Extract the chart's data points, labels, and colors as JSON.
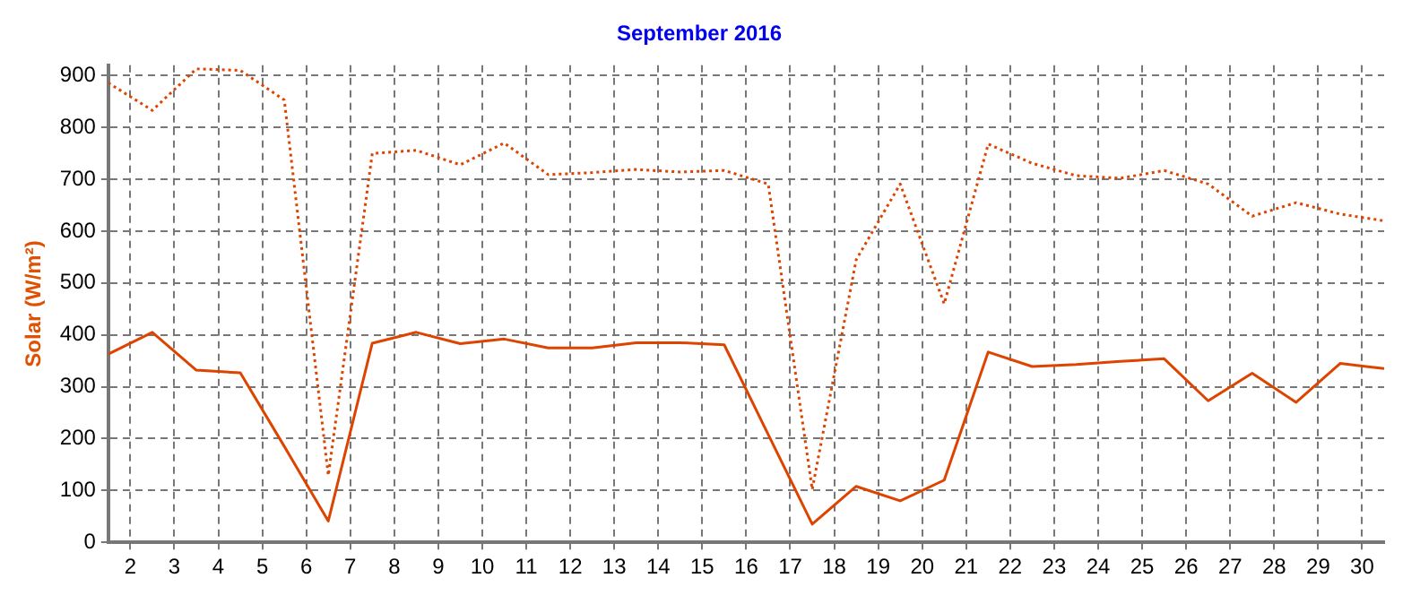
{
  "chart_data": {
    "type": "line",
    "title": "September 2016",
    "ylabel": "Solar (W/m²)",
    "x": [
      1.5,
      2.5,
      3.5,
      4.5,
      5.5,
      6.5,
      7.5,
      8.5,
      9.5,
      10.5,
      11.5,
      12.5,
      13.5,
      14.5,
      15.5,
      16.5,
      17.5,
      18.5,
      19.5,
      20.5,
      21.5,
      22.5,
      23.5,
      24.5,
      25.5,
      26.5,
      27.5,
      28.5,
      29.5,
      30.5
    ],
    "series": [
      {
        "color": "#dd4400",
        "line_style": "solid",
        "values": [
          363,
          405,
          332,
          327,
          185,
          41,
          384,
          405,
          383,
          392,
          375,
          375,
          385,
          385,
          381,
          208,
          35,
          108,
          80,
          120,
          367,
          339,
          343,
          349,
          354,
          273,
          326,
          270,
          345,
          335
        ]
      },
      {
        "color": "#dd4400",
        "line_style": "dotted",
        "values": [
          886,
          833,
          913,
          910,
          853,
          129,
          750,
          756,
          728,
          770,
          709,
          713,
          719,
          714,
          717,
          691,
          102,
          545,
          691,
          460,
          768,
          731,
          707,
          702,
          717,
          691,
          629,
          655,
          633,
          620
        ]
      }
    ],
    "xlim": [
      1.5,
      30.5
    ],
    "xticks": [
      2,
      3,
      4,
      5,
      6,
      7,
      8,
      9,
      10,
      11,
      12,
      13,
      14,
      15,
      16,
      17,
      18,
      19,
      20,
      21,
      22,
      23,
      24,
      25,
      26,
      27,
      28,
      29,
      30
    ],
    "ylim": [
      0,
      920
    ],
    "yticks": [
      0,
      100,
      200,
      300,
      400,
      500,
      600,
      700,
      800,
      900
    ],
    "grid": true,
    "legend": false,
    "marker": "none"
  }
}
